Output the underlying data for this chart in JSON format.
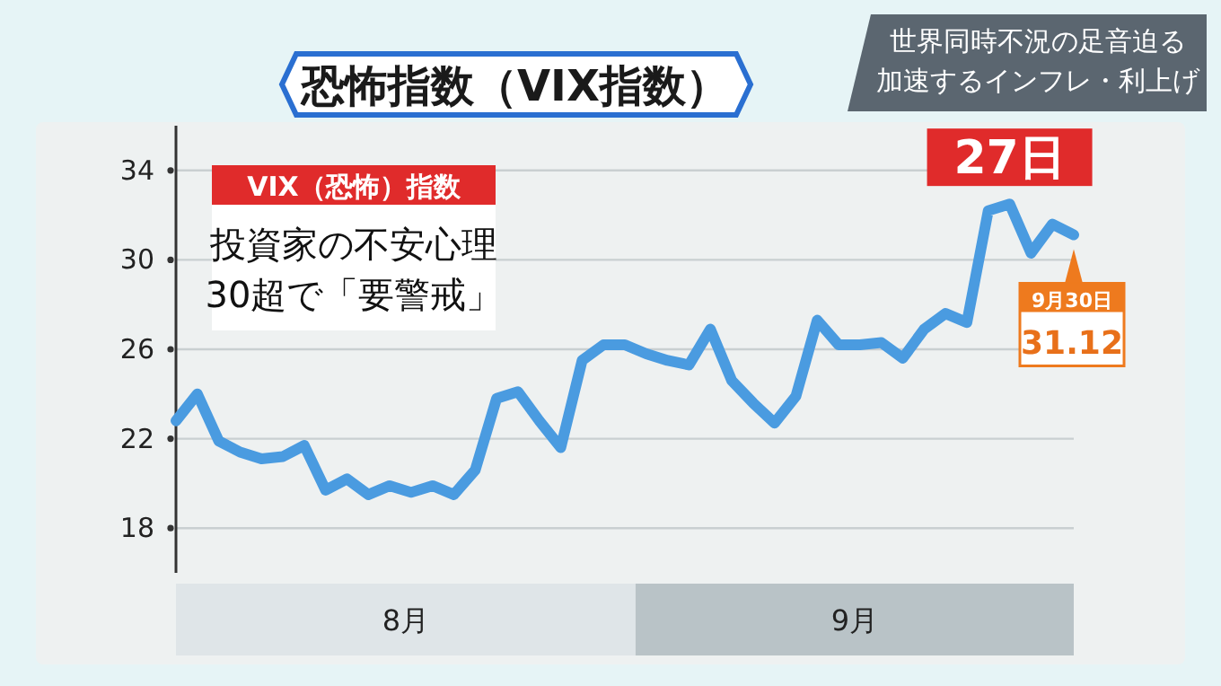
{
  "chart_data": {
    "type": "line",
    "title": "恐怖指数（VIX指数）",
    "subtitle": "世界同時不況の足音迫る加速するインフレ・利上げ",
    "categories": [
      null,
      null,
      null,
      null,
      null,
      null,
      null,
      null,
      null,
      null,
      null,
      null,
      null,
      null,
      null,
      null,
      null,
      null,
      null,
      null,
      null,
      null,
      null,
      null,
      null,
      null,
      null,
      null,
      null,
      null,
      null,
      null,
      null,
      null,
      null,
      null,
      null,
      null,
      null,
      null,
      null,
      null,
      null
    ],
    "series": [
      {
        "color": "#4a9be0",
        "values": [
          22.8,
          24.0,
          21.9,
          21.4,
          21.1,
          21.2,
          21.7,
          19.7,
          20.2,
          19.5,
          19.9,
          19.6,
          19.9,
          19.5,
          20.6,
          23.8,
          24.1,
          22.8,
          21.6,
          25.5,
          26.2,
          26.2,
          25.8,
          25.5,
          25.3,
          26.9,
          24.6,
          23.6,
          22.7,
          23.9,
          27.3,
          26.2,
          26.2,
          26.3,
          25.6,
          26.9,
          27.6,
          27.2,
          32.2,
          32.5,
          30.3,
          31.6,
          31.12
        ]
      }
    ],
    "ylim": [
      16,
      36
    ],
    "yticks": [
      18,
      22,
      26,
      30,
      34
    ],
    "grid": "y",
    "marker": "none",
    "line_style": "solid",
    "annotations": [
      "VIX（恐怖）指数",
      "投資家の不安心理\n30超で「要警戒」",
      "8月",
      "9月",
      {
        "text": "27日",
        "y": 32.5
      },
      {
        "text": "9月30日"
      },
      {
        "text": "31.12",
        "y": 31.12
      }
    ]
  }
}
